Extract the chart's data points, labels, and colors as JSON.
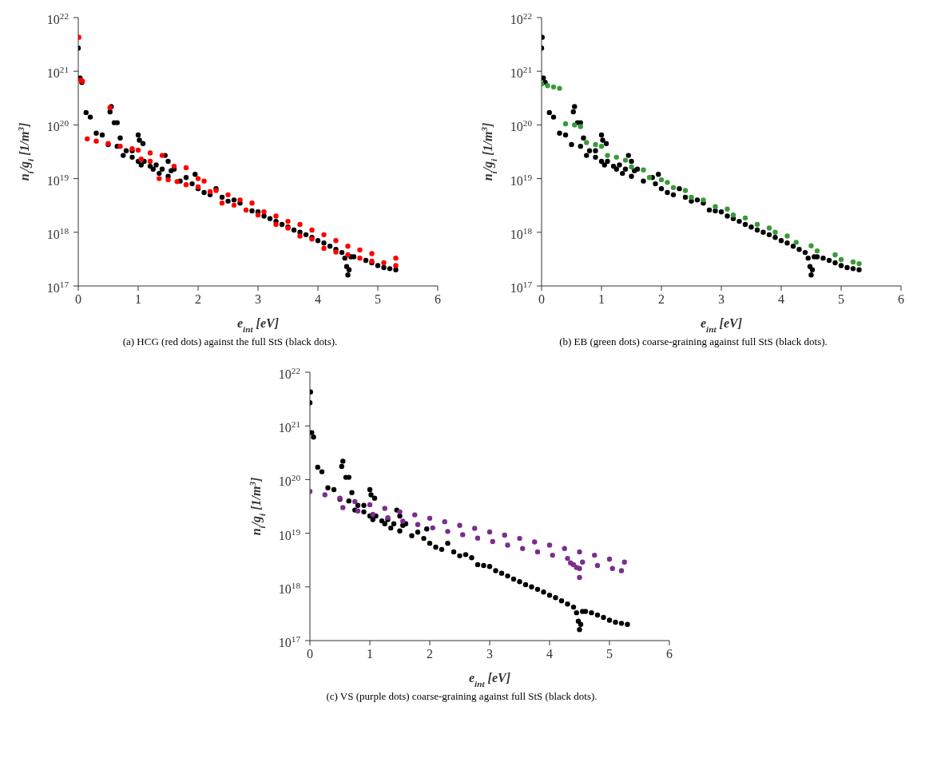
{
  "chart_data": [
    {
      "type": "scatter",
      "xlabel": "e$_{int}$ [eV]",
      "ylabel": "n$_{i}$/g$_{i}$ [1/m$^{3}$]",
      "xlim": [
        0,
        6
      ],
      "xticks": [
        0,
        1,
        2,
        3,
        4,
        5,
        6
      ],
      "ylim": [
        1e+17,
        1e+22
      ],
      "yticks": [
        {
          "value": 1e+17,
          "label": "10$^{17}$"
        },
        {
          "value": 1e+18,
          "label": "10$^{18}$"
        },
        {
          "value": 1e+19,
          "label": "10$^{19}$"
        },
        {
          "value": 1e+20,
          "label": "10$^{20}$"
        },
        {
          "value": 1e+21,
          "label": "10$^{21}$"
        },
        {
          "value": 1e+22,
          "label": "10$^{22}$"
        }
      ],
      "log": true,
      "marker": "circle",
      "annotations": [
        "(a)  HCG (red dots) against the full StS (black dots)."
      ],
      "series": [
        {
          "color": "#000000",
          "x": [
            0,
            0.01,
            0.03,
            0.06,
            0.13,
            0.2,
            0.3,
            0.4,
            0.5,
            0.53,
            0.55,
            0.6,
            0.65,
            0.65,
            0.7,
            0.75,
            0.8,
            0.9,
            0.9,
            1.0,
            1.0,
            1.02,
            1.05,
            1.08,
            1.1,
            1.2,
            1.25,
            1.3,
            1.35,
            1.4,
            1.45,
            1.5,
            1.5,
            1.55,
            1.6,
            1.7,
            1.8,
            1.9,
            1.95,
            2.0,
            2.1,
            2.2,
            2.3,
            2.4,
            2.5,
            2.6,
            2.7,
            2.8,
            2.9,
            3.0,
            3.1,
            3.2,
            3.3,
            3.4,
            3.5,
            3.6,
            3.7,
            3.8,
            3.9,
            4.0,
            4.1,
            4.2,
            4.3,
            4.4,
            4.45,
            4.48,
            4.5,
            4.52,
            4.55,
            4.6,
            4.7,
            4.8,
            4.9,
            5.0,
            5.1,
            5.2,
            5.3
          ],
          "values": [
            2.7e+21,
            null,
            7.5e+20,
            6.2e+20,
            1.7e+20,
            1.4e+20,
            7e+19,
            6.5e+19,
            4.3e+19,
            1.75e+20,
            2.2e+20,
            1.1e+20,
            1.1e+20,
            4e+19,
            5.7e+19,
            2.7e+19,
            3.3e+19,
            3.3e+19,
            2.5e+19,
            6.5e+19,
            2.1e+19,
            5.2e+19,
            1.8e+19,
            4.5e+19,
            2.1e+19,
            1.7e+19,
            1.5e+19,
            1.8e+19,
            1.25e+19,
            1.5e+19,
            2.7e+19,
            1.1e+19,
            2.1e+19,
            1.4e+19,
            1.5e+19,
            9e+18,
            1.05e+19,
            8e+18,
            1.2e+19,
            6.5e+18,
            5.5e+18,
            5e+18,
            6.5e+18,
            4.5e+18,
            3.8e+18,
            4e+18,
            3.5e+18,
            null,
            2.5e+18,
            2.4e+18,
            2e+18,
            1.8e+18,
            1.6e+18,
            1.4e+18,
            1.25e+18,
            1.1e+18,
            1e+18,
            9e+17,
            8e+17,
            7e+17,
            6.3e+17,
            5.5e+17,
            4.8e+17,
            4.2e+17,
            3.3e+17,
            2.3e+17,
            1.6e+17,
            2e+17,
            3.5e+17,
            3.5e+17,
            null,
            3e+17,
            2.7e+17,
            2.4e+17,
            2.2e+17,
            2.1e+17,
            2e+17
          ]
        },
        {
          "color": "#ff0000",
          "x": [
            0.01,
            0.04,
            0.07,
            0.53,
            0.15,
            0.3,
            0.5,
            0.7,
            0.9,
            1.0,
            1.2,
            1.4,
            1.6,
            1.8,
            2.0,
            2.1,
            2.3,
            2.5,
            2.7,
            2.9,
            3.1,
            3.3,
            3.5,
            3.7,
            3.9,
            4.1,
            4.3,
            4.5,
            4.7,
            4.9,
            5.3,
            1.05,
            1.2,
            1.35,
            1.5,
            1.65,
            1.8,
            2.0,
            2.2,
            2.4,
            2.6,
            2.8,
            3.0,
            3.3,
            3.5,
            3.7,
            3.9,
            4.1,
            4.3,
            4.5,
            4.7,
            4.9,
            5.1,
            5.3
          ],
          "values": [
            4.3e+21,
            6.8e+20,
            6.5e+20,
            2.1e+20,
            5.5e+19,
            5e+19,
            4.5e+19,
            4e+19,
            3.6e+19,
            3.4e+19,
            3e+19,
            2.7e+19,
            1.7e+19,
            1.6e+19,
            1e+19,
            9e+18,
            6e+18,
            5e+18,
            4e+18,
            3.5e+18,
            2.4e+18,
            2e+18,
            1.6e+18,
            1.4e+18,
            1.1e+18,
            9e+17,
            7e+17,
            5.5e+17,
            4.7e+17,
            4e+17,
            3.3e+17,
            2.3e+19,
            2.1e+19,
            1e+19,
            9.5e+18,
            8.8e+18,
            7.7e+18,
            7e+18,
            5.7e+18,
            3.5e+18,
            3.2e+18,
            2.6e+18,
            2.1e+18,
            1.4e+18,
            1.2e+18,
            8.5e+17,
            7.5e+17,
            5e+17,
            4.3e+17,
            3.8e+17,
            3.3e+17,
            2.9e+17,
            2.7e+17,
            2.4e+17
          ]
        }
      ]
    },
    {
      "type": "scatter",
      "xlabel": "e$_{int}$ [eV]",
      "ylabel": "n$_{i}$/g$_{i}$ [1/m$^{3}$]",
      "xlim": [
        0,
        6
      ],
      "xticks": [
        0,
        1,
        2,
        3,
        4,
        5,
        6
      ],
      "ylim": [
        1e+17,
        1e+22
      ],
      "yticks": [
        {
          "value": 1e+17,
          "label": "10$^{17}$"
        },
        {
          "value": 1e+18,
          "label": "10$^{18}$"
        },
        {
          "value": 1e+19,
          "label": "10$^{19}$"
        },
        {
          "value": 1e+20,
          "label": "10$^{20}$"
        },
        {
          "value": 1e+21,
          "label": "10$^{21}$"
        },
        {
          "value": 1e+22,
          "label": "10$^{22}$"
        }
      ],
      "log": true,
      "marker": "circle",
      "annotations": [
        "(b)  EB (green dots) coarse-graining against full StS (black dots)."
      ],
      "series": [
        {
          "color": "#000000",
          "x": [
            0,
            0.01,
            0.03,
            0.06,
            0.13,
            0.2,
            0.3,
            0.4,
            0.5,
            0.53,
            0.55,
            0.6,
            0.65,
            0.65,
            0.7,
            0.75,
            0.8,
            0.9,
            0.9,
            1.0,
            1.0,
            1.02,
            1.05,
            1.08,
            1.1,
            1.2,
            1.25,
            1.3,
            1.35,
            1.4,
            1.45,
            1.5,
            1.5,
            1.55,
            1.6,
            1.7,
            1.85,
            1.9,
            1.95,
            2.0,
            2.1,
            2.2,
            2.3,
            2.4,
            2.5,
            2.6,
            2.7,
            2.8,
            2.9,
            3.0,
            3.1,
            3.2,
            3.3,
            3.4,
            3.5,
            3.6,
            3.7,
            3.8,
            3.9,
            4.0,
            4.1,
            4.2,
            4.3,
            4.4,
            4.45,
            4.48,
            4.5,
            4.52,
            4.55,
            4.6,
            4.7,
            4.8,
            4.9,
            5.0,
            5.1,
            5.2,
            5.3
          ],
          "values": [
            2.7e+21,
            4.3e+21,
            7.5e+20,
            6.2e+20,
            1.7e+20,
            1.4e+20,
            7e+19,
            6.5e+19,
            4.3e+19,
            1.75e+20,
            2.2e+20,
            1.1e+20,
            1.1e+20,
            4e+19,
            5.7e+19,
            2.7e+19,
            3.3e+19,
            3.3e+19,
            2.5e+19,
            6.5e+19,
            2.1e+19,
            5.2e+19,
            1.8e+19,
            4.5e+19,
            2.1e+19,
            1.7e+19,
            1.5e+19,
            1.8e+19,
            1.25e+19,
            1.5e+19,
            2.7e+19,
            1.1e+19,
            2.1e+19,
            1.4e+19,
            1.5e+19,
            9e+18,
            1.05e+19,
            8e+18,
            1.2e+19,
            6.5e+18,
            5.5e+18,
            5e+18,
            6.5e+18,
            4.5e+18,
            3.8e+18,
            4e+18,
            3.5e+18,
            2.6e+18,
            2.5e+18,
            2.4e+18,
            2e+18,
            1.8e+18,
            1.6e+18,
            1.4e+18,
            1.25e+18,
            1.1e+18,
            1e+18,
            9e+17,
            8e+17,
            7e+17,
            6.3e+17,
            5.5e+17,
            4.8e+17,
            4.2e+17,
            3.3e+17,
            2.3e+17,
            1.6e+17,
            2e+17,
            3.5e+17,
            3.5e+17,
            3.3e+17,
            3e+17,
            2.7e+17,
            2.4e+17,
            2.2e+17,
            2.1e+17,
            2e+17
          ]
        },
        {
          "color": "#3a9a3a",
          "x": [
            0.0,
            0.1,
            0.2,
            0.3,
            0.4,
            0.55,
            0.65,
            0.75,
            0.9,
            1.0,
            1.1,
            1.25,
            1.4,
            1.5,
            1.7,
            1.8,
            2.0,
            2.1,
            2.2,
            2.4,
            2.5,
            2.7,
            2.9,
            3.1,
            3.2,
            3.4,
            3.6,
            3.8,
            3.9,
            4.1,
            4.25,
            4.5,
            4.6,
            4.9,
            5.0,
            5.2,
            5.3
          ],
          "values": [
            5.8e+20,
            5.4e+20,
            5.1e+20,
            4.8e+20,
            1.05e+20,
            1e+20,
            9.3e+19,
            4.7e+19,
            4.3e+19,
            4e+19,
            2.7e+19,
            2.5e+19,
            2.2e+19,
            1.65e+19,
            1.45e+19,
            1.05e+19,
            9.5e+18,
            8.5e+18,
            6.8e+18,
            6e+18,
            4.5e+18,
            4e+18,
            3e+18,
            2.7e+18,
            2.1e+18,
            1.85e+18,
            1.4e+18,
            1.2e+18,
            1e+18,
            8.5e+17,
            6.5e+17,
            5.6e+17,
            4.5e+17,
            3.8e+17,
            3.1e+17,
            2.8e+17,
            2.6e+17
          ]
        }
      ]
    },
    {
      "type": "scatter",
      "xlabel": "e$_{int}$ [eV]",
      "ylabel": "n$_{i}$/g$_{i}$ [1/m$^{3}$]",
      "xlim": [
        0,
        6
      ],
      "xticks": [
        0,
        1,
        2,
        3,
        4,
        5,
        6
      ],
      "ylim": [
        1e+17,
        1e+22
      ],
      "yticks": [
        {
          "value": 1e+17,
          "label": "10$^{17}$"
        },
        {
          "value": 1e+18,
          "label": "10$^{18}$"
        },
        {
          "value": 1e+19,
          "label": "10$^{19}$"
        },
        {
          "value": 1e+20,
          "label": "10$^{20}$"
        },
        {
          "value": 1e+21,
          "label": "10$^{21}$"
        },
        {
          "value": 1e+22,
          "label": "10$^{22}$"
        }
      ],
      "log": true,
      "marker": "circle",
      "annotations": [
        "(c)  VS (purple dots) coarse-graining against full StS (black dots)."
      ],
      "series": [
        {
          "color": "#000000",
          "x": [
            0,
            0.01,
            0.03,
            0.06,
            0.13,
            0.2,
            0.3,
            0.4,
            0.5,
            0.53,
            0.55,
            0.6,
            0.65,
            0.65,
            0.7,
            0.75,
            0.8,
            0.9,
            0.9,
            1.0,
            1.0,
            1.02,
            1.05,
            1.08,
            1.1,
            1.2,
            1.25,
            1.3,
            1.35,
            1.4,
            1.45,
            1.5,
            1.5,
            1.55,
            1.6,
            1.7,
            1.8,
            1.9,
            1.95,
            2.0,
            2.1,
            2.2,
            2.3,
            2.4,
            2.5,
            2.6,
            2.7,
            2.8,
            2.9,
            3.0,
            3.1,
            3.2,
            3.3,
            3.4,
            3.5,
            3.6,
            3.7,
            3.8,
            3.9,
            4.0,
            4.1,
            4.2,
            4.3,
            4.4,
            4.45,
            4.48,
            4.5,
            4.52,
            4.55,
            4.6,
            4.7,
            4.8,
            4.9,
            5.0,
            5.1,
            5.2,
            5.3
          ],
          "values": [
            2.7e+21,
            4.3e+21,
            7.5e+20,
            6.2e+20,
            1.7e+20,
            1.4e+20,
            7e+19,
            6.5e+19,
            4.3e+19,
            1.75e+20,
            2.2e+20,
            1.1e+20,
            1.1e+20,
            4e+19,
            5.7e+19,
            2.7e+19,
            3.3e+19,
            3.3e+19,
            2.5e+19,
            6.5e+19,
            2.1e+19,
            5.2e+19,
            1.8e+19,
            4.5e+19,
            2.1e+19,
            1.7e+19,
            1.5e+19,
            1.8e+19,
            1.25e+19,
            1.5e+19,
            2.7e+19,
            1.1e+19,
            2.1e+19,
            1.4e+19,
            1.5e+19,
            9e+18,
            1.05e+19,
            8e+18,
            1.2e+19,
            6.5e+18,
            5.5e+18,
            5e+18,
            6.5e+18,
            4.5e+18,
            3.8e+18,
            4e+18,
            3.5e+18,
            2.6e+18,
            2.5e+18,
            2.4e+18,
            2e+18,
            1.8e+18,
            1.6e+18,
            1.4e+18,
            1.25e+18,
            1.1e+18,
            1e+18,
            9e+17,
            8e+17,
            7e+17,
            6.3e+17,
            5.5e+17,
            4.8e+17,
            4.2e+17,
            3.3e+17,
            2.3e+17,
            1.6e+17,
            2e+17,
            3.5e+17,
            3.5e+17,
            3.3e+17,
            3e+17,
            2.7e+17,
            2.4e+17,
            2.2e+17,
            2.1e+17,
            2e+17
          ]
        },
        {
          "color": "#7b2d8e",
          "x": [
            0,
            0.25,
            0.5,
            0.75,
            1.0,
            1.25,
            1.5,
            1.75,
            2.0,
            2.25,
            2.5,
            2.75,
            3.0,
            3.25,
            3.5,
            3.75,
            4.0,
            4.25,
            4.5,
            4.75,
            5.0,
            5.25,
            0.55,
            0.8,
            1.05,
            1.3,
            1.55,
            1.8,
            2.05,
            2.3,
            2.55,
            2.8,
            3.05,
            3.3,
            3.55,
            3.8,
            4.05,
            4.3,
            4.55,
            4.8,
            5.05,
            5.2,
            4.35,
            4.4,
            4.45,
            4.5,
            4.5
          ],
          "values": [
            6e+19,
            5.2e+19,
            4.5e+19,
            3.9e+19,
            3.4e+19,
            2.9e+19,
            2.5e+19,
            2.2e+19,
            1.9e+19,
            1.64e+19,
            1.4e+19,
            1.23e+19,
            1.06e+19,
            9.2e+18,
            8e+18,
            6.9e+18,
            6e+18,
            5.2e+18,
            4.5e+18,
            3.9e+18,
            3.3e+18,
            2.9e+18,
            3e+19,
            2.6e+19,
            2.25e+19,
            1.95e+19,
            1.68e+19,
            1.45e+19,
            1.26e+19,
            1.08e+19,
            9.4e+18,
            8.1e+18,
            7e+18,
            6e+18,
            5.2e+18,
            4.5e+18,
            3.9e+18,
            3.4e+18,
            2.9e+18,
            2.5e+18,
            2.2e+18,
            2e+18,
            2.8e+18,
            2.6e+18,
            2.3e+18,
            2.2e+18,
            1.5e+18
          ]
        }
      ]
    }
  ]
}
